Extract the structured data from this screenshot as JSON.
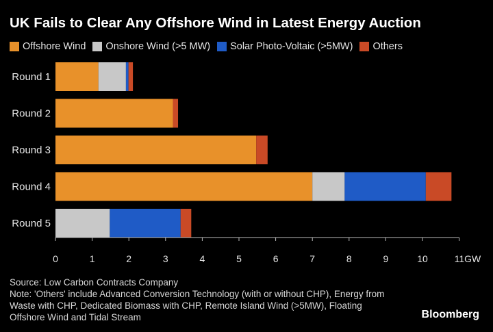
{
  "title": "UK Fails to Clear Any Offshore Wind in Latest Energy Auction",
  "colors": {
    "background": "#000000",
    "offshore": "#E8912A",
    "onshore": "#C8C8C8",
    "solar": "#1F5BC6",
    "others": "#C94A26"
  },
  "chart_data": {
    "type": "bar",
    "orientation": "horizontal",
    "stacked": true,
    "categories": [
      "Round 1",
      "Round 2",
      "Round 3",
      "Round 4",
      "Round 5"
    ],
    "series": [
      {
        "name": "Offshore Wind",
        "color": "#E8912A",
        "values": [
          1.17,
          3.2,
          5.47,
          7.0,
          0
        ]
      },
      {
        "name": "Onshore Wind (>5 MW)",
        "color": "#C8C8C8",
        "values": [
          0.75,
          0,
          0,
          0.88,
          1.48
        ]
      },
      {
        "name": "Solar Photo-Voltaic (>5MW)",
        "color": "#1F5BC6",
        "values": [
          0.07,
          0,
          0,
          2.21,
          1.93
        ]
      },
      {
        "name": "Others",
        "color": "#C94A26",
        "values": [
          0.12,
          0.14,
          0.31,
          0.7,
          0.29
        ]
      }
    ],
    "xlim": [
      0,
      11
    ],
    "xticks": [
      "0",
      "1",
      "2",
      "3",
      "4",
      "5",
      "6",
      "7",
      "8",
      "9",
      "10",
      "11GW"
    ],
    "grid": false,
    "legend": "top-left"
  },
  "footer": {
    "source": "Source: Low Carbon Contracts Company",
    "note": "Note: 'Others' include Advanced Conversion Technology (with or without CHP), Energy from Waste with CHP, Dedicated Biomass with CHP, Remote Island Wind (>5MW), Floating Offshore Wind and Tidal Stream"
  },
  "brand": "Bloomberg"
}
